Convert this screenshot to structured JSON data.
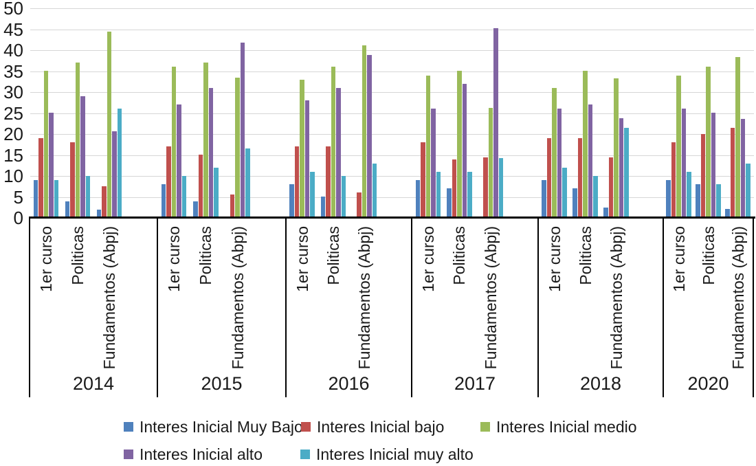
{
  "chart_data": {
    "type": "bar",
    "title": "",
    "xlabel": "",
    "ylabel": "",
    "ylim": [
      0,
      50
    ],
    "yticks": [
      0,
      5,
      10,
      15,
      20,
      25,
      30,
      35,
      40,
      45,
      50
    ],
    "grid": true,
    "legend_position": "bottom",
    "categories": [
      "1er curso",
      "Politicas",
      "Fundamentos (Abpj)"
    ],
    "series": [
      {
        "name": "Interes Inicial Muy Bajo",
        "color": "#4F81BD"
      },
      {
        "name": "Interes Inicial bajo",
        "color": "#C0504D"
      },
      {
        "name": "Interes Inicial medio",
        "color": "#9BBB59"
      },
      {
        "name": "Interes Inicial alto",
        "color": "#8064A2"
      },
      {
        "name": "Interes Inicial muy alto",
        "color": "#4BACC6"
      }
    ],
    "groups": [
      {
        "year": "2014",
        "values": [
          [
            9,
            19,
            35,
            25,
            9
          ],
          [
            4,
            18,
            37,
            29,
            10
          ],
          [
            2,
            7.5,
            44.5,
            20.7,
            26
          ]
        ]
      },
      {
        "year": "2015",
        "values": [
          [
            8,
            17,
            36,
            27,
            10
          ],
          [
            4,
            15,
            37,
            31,
            12
          ],
          [
            0,
            5.5,
            33.5,
            41.8,
            16.5
          ]
        ]
      },
      {
        "year": "2016",
        "values": [
          [
            8,
            17,
            33,
            28,
            11
          ],
          [
            5,
            17,
            36,
            31,
            10
          ],
          [
            0,
            6,
            41.2,
            38.9,
            13
          ]
        ]
      },
      {
        "year": "2017",
        "values": [
          [
            9,
            18,
            34,
            26,
            11
          ],
          [
            7,
            14,
            35,
            32,
            11
          ],
          [
            0,
            14.5,
            26.2,
            45.2,
            14.2
          ]
        ]
      },
      {
        "year": "2018",
        "values": [
          [
            9,
            19,
            31,
            26,
            12
          ],
          [
            7,
            19,
            35,
            27,
            10
          ],
          [
            2.5,
            14.4,
            33.3,
            23.8,
            21.4
          ]
        ]
      },
      {
        "year": "2020",
        "values": [
          [
            9,
            18,
            34,
            26,
            11
          ],
          [
            8,
            20,
            36,
            25,
            8
          ],
          [
            2.2,
            21.4,
            38.3,
            23.6,
            13
          ]
        ]
      }
    ]
  },
  "colors": {
    "gridline": "#D6D6D6",
    "axis": "#000000",
    "text": "#1A1A1A",
    "background": "#FFFFFF"
  }
}
